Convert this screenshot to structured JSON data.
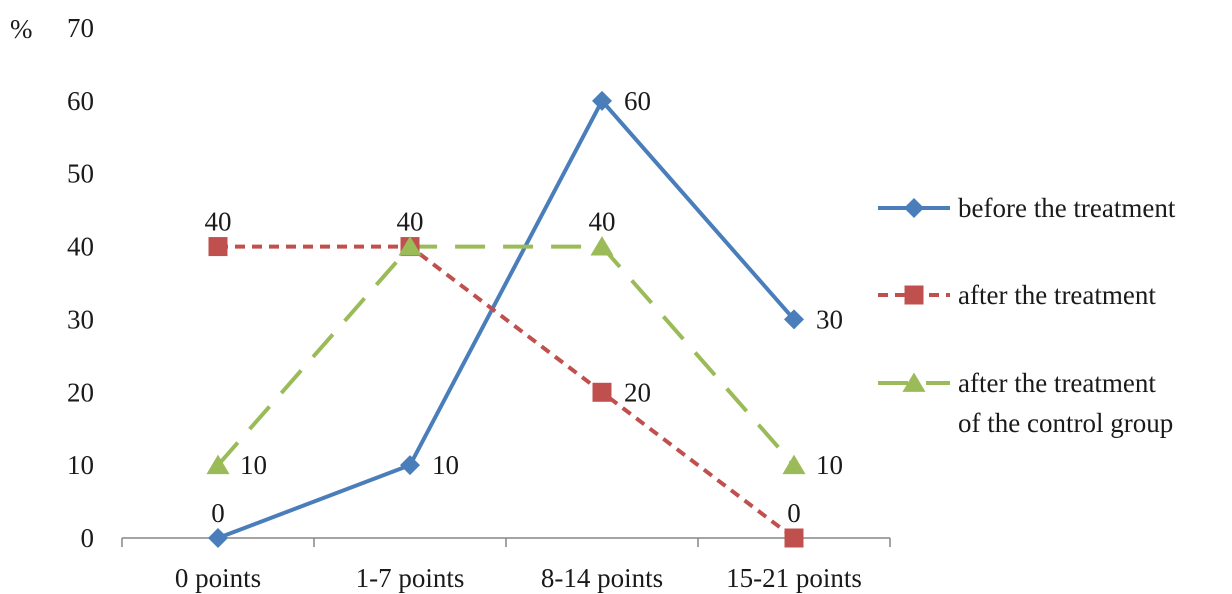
{
  "chart_data": {
    "type": "line",
    "title": "",
    "xlabel": "",
    "ylabel": "%",
    "categories": [
      "0 points",
      "1-7 points",
      "8-14 points",
      "15-21 points"
    ],
    "ylim": [
      0,
      70
    ],
    "yticks": [
      0,
      10,
      20,
      30,
      40,
      50,
      60,
      70
    ],
    "grid": false,
    "legend_position": "right",
    "series": [
      {
        "name": "before the treatment",
        "values": [
          0,
          10,
          60,
          30
        ],
        "color": "#4a7ebb",
        "marker": "diamond",
        "line_style": "solid"
      },
      {
        "name": "after the treatment",
        "values": [
          40,
          40,
          20,
          0
        ],
        "color": "#c0504d",
        "marker": "square",
        "line_style": "dotted"
      },
      {
        "name": "after the treatment of the control group",
        "legend_lines": [
          "after the treatment",
          "of the control group"
        ],
        "values": [
          10,
          40,
          40,
          10
        ],
        "color": "#9bbb59",
        "marker": "triangle",
        "line_style": "dashed"
      }
    ]
  }
}
